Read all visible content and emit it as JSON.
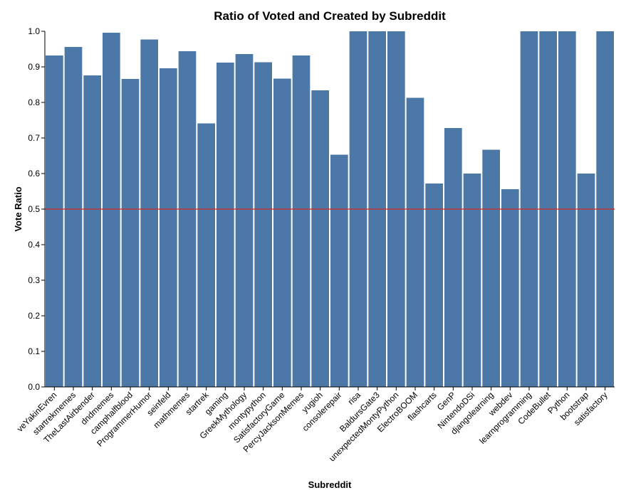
{
  "chart_data": {
    "type": "bar",
    "title": "Ratio of Voted and Created by Subreddit",
    "xlabel": "Subreddit",
    "ylabel": "Vote Ratio",
    "ylim": [
      0,
      1
    ],
    "yticks": [
      "0.0",
      "0.1",
      "0.2",
      "0.3",
      "0.4",
      "0.5",
      "0.6",
      "0.7",
      "0.8",
      "0.9",
      "1.0"
    ],
    "grid": false,
    "bar_color": "#4c78a8",
    "reference_line": {
      "value": 0.5,
      "color": "#d62728"
    },
    "categories": [
      "veYakinEvren",
      "startrekmemes",
      "TheLastAirbender",
      "dndmemes",
      "camphalfblood",
      "ProgrammerHumor",
      "seinfeld",
      "mathmemes",
      "startrek",
      "gaming",
      "GreekMythology",
      "montypython",
      "SatisfactoryGame",
      "PercyJacksonMemes",
      "yugioh",
      "consolerepair",
      "risa",
      "BaldursGate3",
      "unexpectedMontyPython",
      "ElectroBOOM",
      "flashcarts",
      "GenP",
      "NintendoDSi",
      "djangolearning",
      "webdev",
      "learnprogramming",
      "CodeBullet",
      "Python",
      "bootstrap",
      "satisfactory"
    ],
    "values": [
      0.932,
      0.956,
      0.876,
      0.996,
      0.866,
      0.977,
      0.896,
      0.944,
      0.741,
      0.912,
      0.936,
      0.913,
      0.867,
      0.932,
      0.834,
      0.653,
      1.0,
      1.0,
      1.0,
      0.813,
      0.572,
      0.728,
      0.6,
      0.667,
      0.556,
      1.0,
      1.0,
      1.0,
      0.6,
      1.0
    ]
  }
}
